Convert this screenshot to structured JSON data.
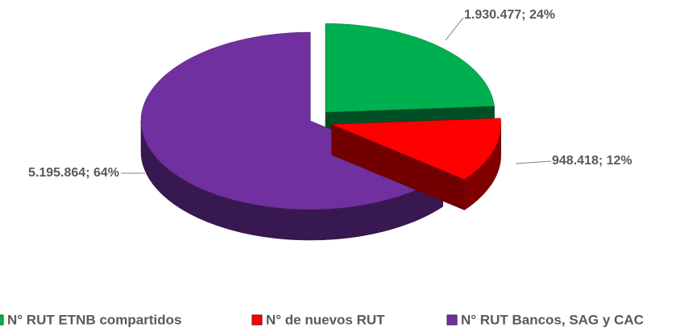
{
  "chart_data": {
    "type": "pie3d",
    "categories": [
      "N° RUT ETNB compartidos",
      "N° de nuevos RUT",
      "N° RUT Bancos, SAG y CAC"
    ],
    "values": [
      1930477,
      948418,
      5195864
    ],
    "value_labels": [
      "1.930.477; 24%",
      "948.418; 12%",
      "5.195.864; 64%"
    ],
    "colors": [
      "#00b050",
      "#ff0000",
      "#7030a0"
    ],
    "legend": "bottom"
  }
}
